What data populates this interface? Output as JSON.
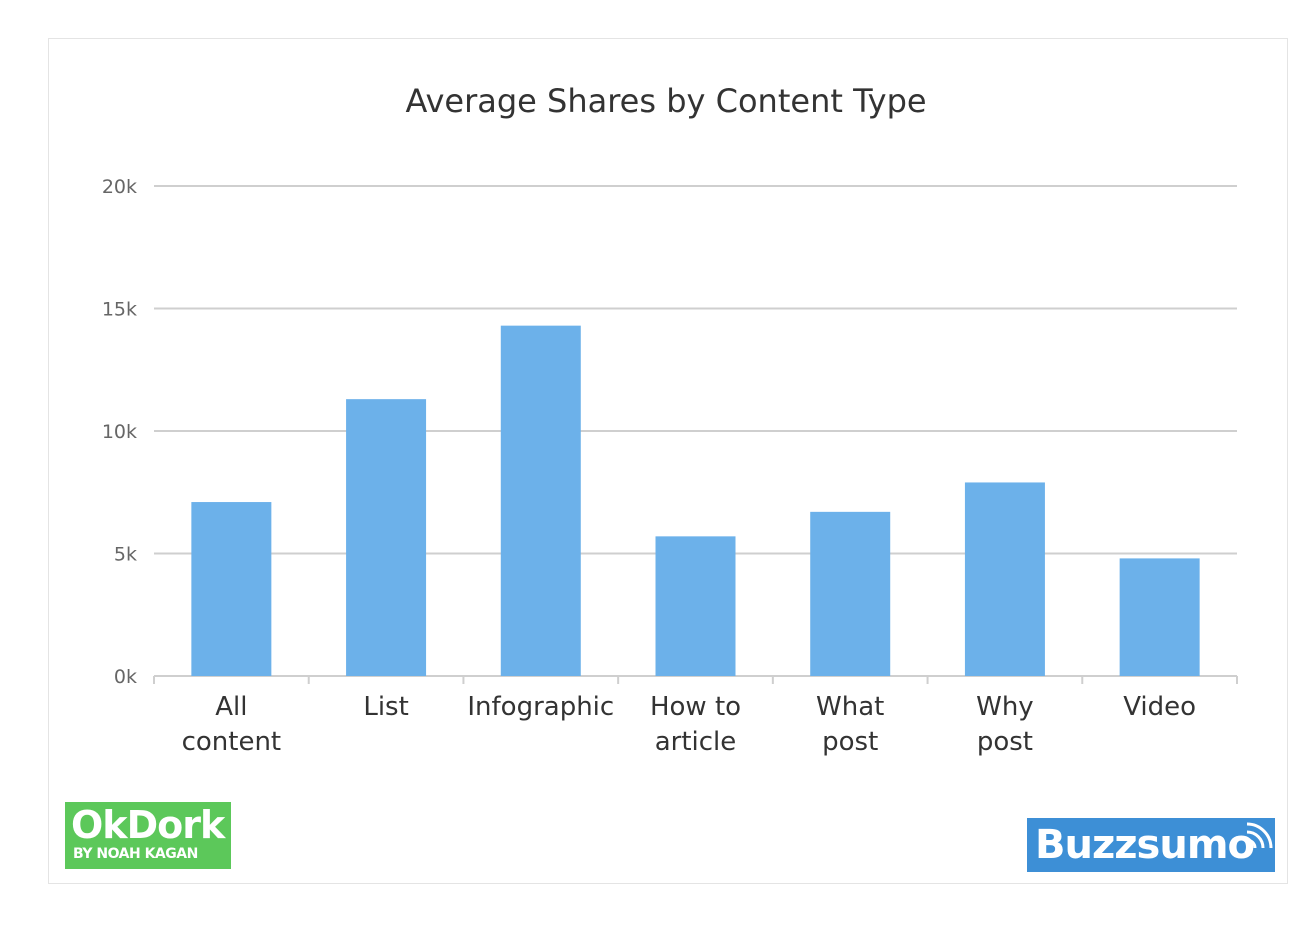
{
  "chart_data": {
    "type": "bar",
    "title": "Average Shares by Content Type",
    "categories": [
      [
        "All",
        "content"
      ],
      [
        "List"
      ],
      [
        "Infographic"
      ],
      [
        "How to",
        "article"
      ],
      [
        "What",
        "post"
      ],
      [
        "Why",
        "post"
      ],
      [
        "Video"
      ]
    ],
    "values": [
      7100,
      11300,
      14300,
      5700,
      6700,
      7900,
      4800
    ],
    "ylim": [
      0,
      20000
    ],
    "yticks": [
      0,
      5000,
      10000,
      15000,
      20000
    ],
    "ytick_labels": [
      "0k",
      "5k",
      "10k",
      "15k",
      "20k"
    ],
    "xlabel": "",
    "ylabel": "",
    "grid": true,
    "bar_color": "#6cb1ea",
    "grid_color": "#cfcfcf"
  },
  "logos": {
    "okdork_name": "OkDork",
    "okdork_byline": "BY NOAH KAGAN",
    "buzzsumo_name": "Buzzsumo"
  }
}
